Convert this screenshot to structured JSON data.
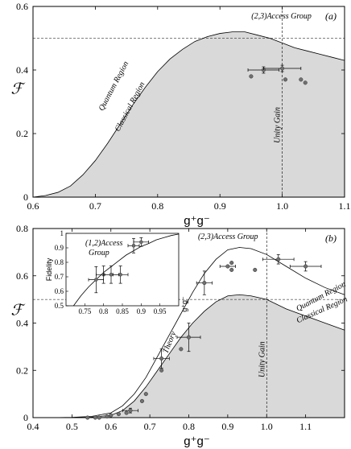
{
  "chart_data": [
    {
      "type": "area",
      "panel_label": "(a)",
      "xlabel": "g⁺g⁻",
      "ylabel": "ℱ",
      "xlim": [
        0.6,
        1.1
      ],
      "ylim": [
        0,
        0.6
      ],
      "x_ticks": [
        "0.6",
        "0.7",
        "0.8",
        "0.9",
        "1.0",
        "1.1"
      ],
      "y_ticks": [
        "0",
        "0.2",
        "0.4",
        "0.6"
      ],
      "reference_lines": {
        "horizontal_y": 0.5,
        "vertical_x": 1.0
      },
      "annotations": {
        "top": "(2,3)Access Group",
        "quantum": "Quantum Region",
        "classical": "Classical Region",
        "unity": "Unity Gain"
      },
      "classical_boundary": {
        "x": [
          0.6,
          0.62,
          0.64,
          0.66,
          0.68,
          0.7,
          0.72,
          0.74,
          0.76,
          0.78,
          0.8,
          0.82,
          0.84,
          0.86,
          0.88,
          0.9,
          0.92,
          0.94,
          0.96,
          0.98,
          1.0,
          1.02,
          1.04,
          1.06,
          1.08,
          1.1
        ],
        "y": [
          0.0,
          0.005,
          0.015,
          0.035,
          0.07,
          0.115,
          0.17,
          0.23,
          0.29,
          0.345,
          0.395,
          0.435,
          0.465,
          0.49,
          0.505,
          0.515,
          0.52,
          0.52,
          0.51,
          0.5,
          0.485,
          0.47,
          0.46,
          0.45,
          0.44,
          0.43
        ]
      },
      "points": [
        {
          "x": 0.95,
          "y": 0.38
        },
        {
          "x": 0.97,
          "y": 0.4,
          "xerr": 0.025,
          "yerr": 0.01
        },
        {
          "x": 1.0,
          "y": 0.405,
          "xerr": 0.03,
          "yerr": 0.01
        },
        {
          "x": 1.005,
          "y": 0.37
        },
        {
          "x": 1.03,
          "y": 0.37
        },
        {
          "x": 1.037,
          "y": 0.36
        }
      ]
    },
    {
      "type": "area",
      "panel_label": "(b)",
      "xlabel": "g⁺g⁻",
      "ylabel": "ℱ",
      "xlim": [
        0.4,
        1.2
      ],
      "ylim": [
        0,
        0.8
      ],
      "x_ticks": [
        "0.4",
        "0.5",
        "0.6",
        "0.7",
        "0.8",
        "0.9",
        "1.0",
        "1.1"
      ],
      "y_ticks": [
        "0",
        "0.2",
        "0.4",
        "0.6",
        "0.8"
      ],
      "reference_lines": {
        "horizontal_y": 0.5,
        "vertical_x": 1.0
      },
      "annotations": {
        "top": "(2,3)Access Group",
        "quantum": "Quantum Region",
        "classical": "Classical Region",
        "unity": "Unity Gain",
        "theory": "Theory"
      },
      "classical_boundary": {
        "x": [
          0.4,
          0.45,
          0.5,
          0.55,
          0.6,
          0.63,
          0.66,
          0.69,
          0.72,
          0.75,
          0.78,
          0.81,
          0.84,
          0.87,
          0.9,
          0.93,
          0.96,
          1.0,
          1.05,
          1.1,
          1.15,
          1.2
        ],
        "y": [
          0,
          0,
          0,
          0.002,
          0.01,
          0.03,
          0.07,
          0.13,
          0.2,
          0.27,
          0.34,
          0.4,
          0.45,
          0.49,
          0.515,
          0.52,
          0.515,
          0.5,
          0.46,
          0.43,
          0.4,
          0.37
        ]
      },
      "theory_curve": {
        "x": [
          0.4,
          0.45,
          0.5,
          0.55,
          0.6,
          0.63,
          0.66,
          0.69,
          0.72,
          0.75,
          0.78,
          0.81,
          0.84,
          0.87,
          0.9,
          0.93,
          0.96,
          1.0,
          1.05,
          1.1,
          1.15,
          1.2
        ],
        "y": [
          0,
          0,
          0.001,
          0.005,
          0.02,
          0.05,
          0.1,
          0.17,
          0.26,
          0.35,
          0.44,
          0.53,
          0.61,
          0.67,
          0.71,
          0.72,
          0.715,
          0.69,
          0.64,
          0.59,
          0.55,
          0.52
        ]
      },
      "points": [
        {
          "x": 0.54,
          "y": 0.0
        },
        {
          "x": 0.56,
          "y": 0.0
        },
        {
          "x": 0.57,
          "y": 0.0
        },
        {
          "x": 0.59,
          "y": 0.005
        },
        {
          "x": 0.6,
          "y": 0.01
        },
        {
          "x": 0.62,
          "y": 0.015
        },
        {
          "x": 0.64,
          "y": 0.02
        },
        {
          "x": 0.65,
          "y": 0.03,
          "xerr": 0.02,
          "yerr": 0.01
        },
        {
          "x": 0.68,
          "y": 0.07
        },
        {
          "x": 0.69,
          "y": 0.1
        },
        {
          "x": 0.73,
          "y": 0.25,
          "xerr": 0.02,
          "yerr": 0.04
        },
        {
          "x": 0.73,
          "y": 0.2
        },
        {
          "x": 0.78,
          "y": 0.29
        },
        {
          "x": 0.8,
          "y": 0.34,
          "xerr": 0.03,
          "yerr": 0.06
        },
        {
          "x": 0.84,
          "y": 0.57,
          "xerr": 0.02,
          "yerr": 0.05
        },
        {
          "x": 0.9,
          "y": 0.64,
          "xerr": 0.02
        },
        {
          "x": 0.91,
          "y": 0.655
        },
        {
          "x": 0.91,
          "y": 0.625
        },
        {
          "x": 0.97,
          "y": 0.625
        },
        {
          "x": 1.03,
          "y": 0.67,
          "xerr": 0.04,
          "yerr": 0.02
        },
        {
          "x": 1.1,
          "y": 0.64,
          "xerr": 0.04,
          "yerr": 0.02
        }
      ],
      "inset": {
        "annotation": "(1,2)Access Group",
        "ylabel": "Fidelity",
        "xlabel": "g⁺g⁻",
        "xlim": [
          0.7,
          1.0
        ],
        "ylim": [
          0.5,
          1.0
        ],
        "x_ticks": [
          "0.75",
          "0.8",
          "0.85",
          "0.9",
          "0.95"
        ],
        "y_ticks": [
          "0.5",
          "0.6",
          "0.7",
          "0.8",
          "0.9",
          "1"
        ],
        "theory_curve": {
          "x": [
            0.7,
            0.72,
            0.74,
            0.76,
            0.78,
            0.8,
            0.82,
            0.84,
            0.86,
            0.88,
            0.9,
            0.92,
            0.94,
            0.96,
            0.98,
            1.0
          ],
          "y": [
            0.42,
            0.5,
            0.57,
            0.63,
            0.68,
            0.73,
            0.77,
            0.81,
            0.85,
            0.88,
            0.91,
            0.93,
            0.955,
            0.97,
            0.985,
            0.995
          ]
        },
        "points": [
          {
            "x": 0.78,
            "y": 0.68,
            "xerr": 0.02,
            "yerr": 0.09
          },
          {
            "x": 0.8,
            "y": 0.715,
            "xerr": 0.02,
            "yerr": 0.06
          },
          {
            "x": 0.82,
            "y": 0.715,
            "xerr": 0.02,
            "yerr": 0.06
          },
          {
            "x": 0.845,
            "y": 0.715,
            "xerr": 0.02,
            "yerr": 0.06
          },
          {
            "x": 0.88,
            "y": 0.915,
            "xerr": 0.015,
            "yerr": 0.05
          },
          {
            "x": 0.9,
            "y": 0.94,
            "xerr": 0.02,
            "yerr": 0.03
          }
        ]
      }
    }
  ]
}
